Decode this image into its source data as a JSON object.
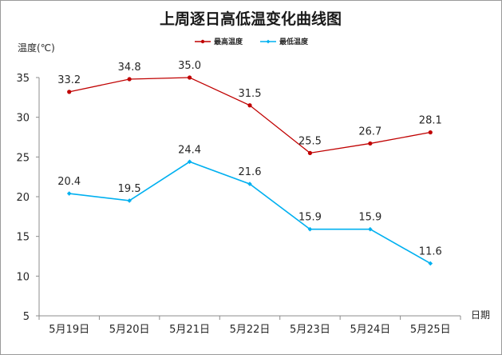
{
  "chart_data": {
    "type": "line",
    "title": "上周逐日高低温变化曲线图",
    "ylabel": "温度(℃)",
    "xlabel": "日期",
    "categories": [
      "5月19日",
      "5月20日",
      "5月21日",
      "5月22日",
      "5月23日",
      "5月24日",
      "5月25日"
    ],
    "ylim": [
      5,
      35
    ],
    "yticks": [
      5,
      10,
      15,
      20,
      25,
      30,
      35
    ],
    "grid": false,
    "legend_position": "top",
    "series": [
      {
        "name": "最高温度",
        "values": [
          33.2,
          34.8,
          35.0,
          31.5,
          25.5,
          26.7,
          28.1
        ],
        "labels": [
          "33.2",
          "34.8",
          "35.0",
          "31.5",
          "25.5",
          "26.7",
          "28.1"
        ],
        "color": "#c00000"
      },
      {
        "name": "最低温度",
        "values": [
          20.4,
          19.5,
          24.4,
          21.6,
          15.9,
          15.9,
          11.6
        ],
        "labels": [
          "20.4",
          "19.5",
          "24.4",
          "21.6",
          "15.9",
          "15.9",
          "11.6"
        ],
        "color": "#00b0f0"
      }
    ]
  }
}
